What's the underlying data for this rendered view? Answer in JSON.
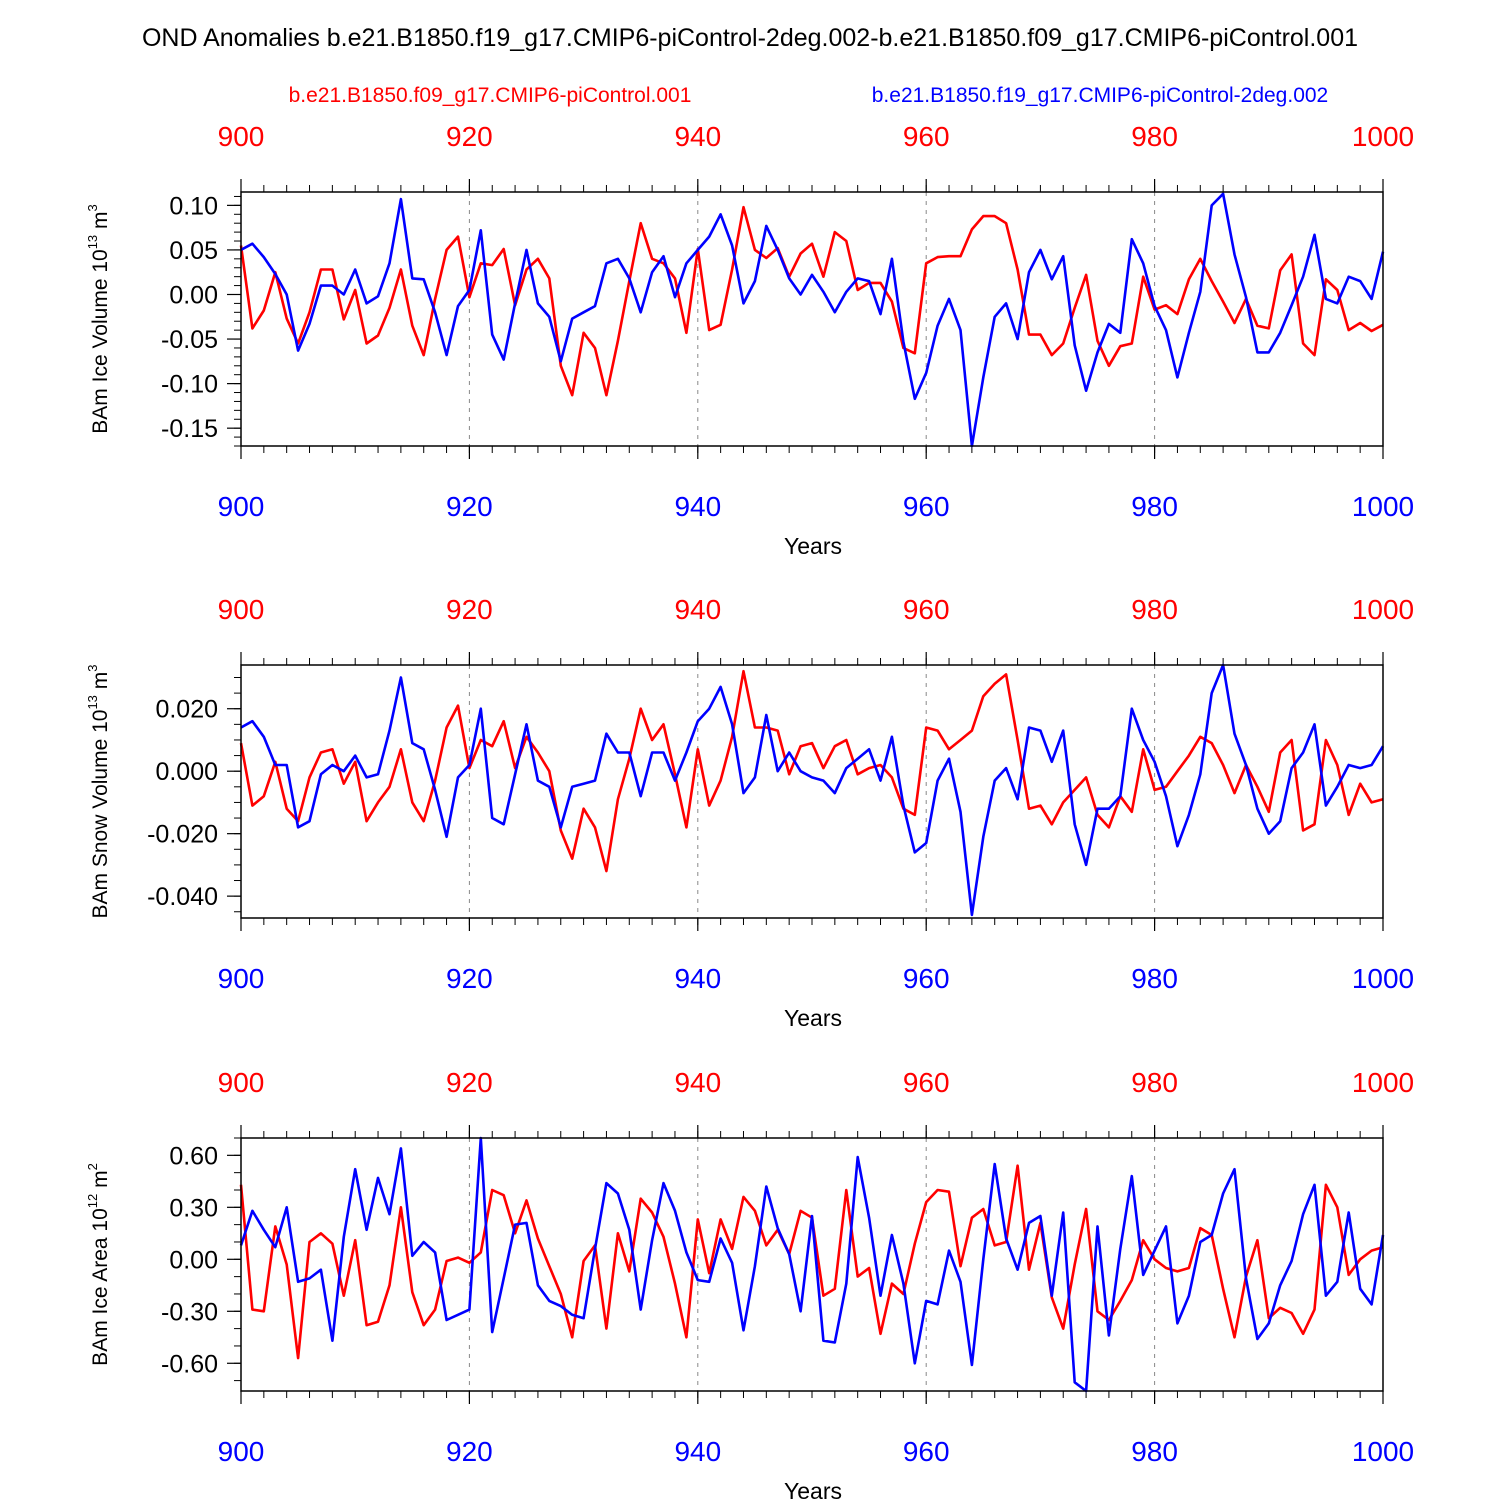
{
  "title": "OND Anomalies b.e21.B1850.f19_g17.CMIP6-piControl-2deg.002-b.e21.B1850.f09_g17.CMIP6-piControl.001",
  "legend": {
    "red": "b.e21.B1850.f09_g17.CMIP6-piControl.001",
    "blue": "b.e21.B1850.f19_g17.CMIP6-piControl-2deg.002"
  },
  "colors": {
    "red": "#ff0000",
    "blue": "#0000ff",
    "axis": "#000000",
    "grid": "#888888"
  },
  "chart_data": [
    {
      "type": "line",
      "ylabel": {
        "main": "BAm Ice Volume 10",
        "sup1": "13",
        "mid": " m",
        "sup2": "3"
      },
      "xlabel": "Years",
      "xlim": [
        900,
        1000
      ],
      "ylim": [
        -0.17,
        0.115
      ],
      "yticks": [
        0.1,
        0.05,
        0.0,
        -0.05,
        -0.1,
        -0.15
      ],
      "ytick_labels": [
        "0.10",
        "0.05",
        "0.00",
        "-0.05",
        "-0.10",
        "-0.15"
      ],
      "ytick_minor": 0.01,
      "xticks": [
        900,
        920,
        940,
        960,
        980,
        1000
      ],
      "xtick_labels": [
        "900",
        "920",
        "940",
        "960",
        "980",
        "1000"
      ],
      "series": [
        {
          "name": "b.e21.B1850.f09_g17.CMIP6-piControl.001",
          "color": "#ff0000",
          "x_start": 900,
          "values": [
            0.055,
            -0.038,
            -0.018,
            0.025,
            -0.027,
            -0.055,
            -0.02,
            0.028,
            0.028,
            -0.028,
            0.005,
            -0.055,
            -0.046,
            -0.015,
            0.028,
            -0.035,
            -0.068,
            -0.005,
            0.05,
            0.065,
            -0.003,
            0.035,
            0.033,
            0.051,
            -0.012,
            0.028,
            0.04,
            0.018,
            -0.08,
            -0.113,
            -0.043,
            -0.06,
            -0.113,
            -0.052,
            0.015,
            0.08,
            0.04,
            0.035,
            0.018,
            -0.043,
            0.051,
            -0.04,
            -0.034,
            0.028,
            0.098,
            0.05,
            0.041,
            0.052,
            0.02,
            0.046,
            0.057,
            0.02,
            0.07,
            0.06,
            0.005,
            0.013,
            0.013,
            -0.008,
            -0.06,
            -0.066,
            0.035,
            0.042,
            0.043,
            0.043,
            0.073,
            0.088,
            0.088,
            0.08,
            0.028,
            -0.045,
            -0.045,
            -0.068,
            -0.055,
            -0.015,
            0.022,
            -0.052,
            -0.08,
            -0.058,
            -0.055,
            0.02,
            -0.017,
            -0.012,
            -0.022,
            0.017,
            0.04,
            0.015,
            -0.008,
            -0.032,
            -0.005,
            -0.035,
            -0.038,
            0.027,
            0.045,
            -0.055,
            -0.068,
            0.017,
            0.005,
            -0.04,
            -0.032,
            -0.041,
            -0.034
          ]
        },
        {
          "name": "b.e21.B1850.f19_g17.CMIP6-piControl-2deg.002",
          "color": "#0000ff",
          "x_start": 900,
          "values": [
            0.05,
            0.057,
            0.042,
            0.023,
            0.0,
            -0.063,
            -0.033,
            0.01,
            0.01,
            0.0,
            0.028,
            -0.01,
            -0.002,
            0.035,
            0.107,
            0.018,
            0.017,
            -0.02,
            -0.068,
            -0.013,
            0.005,
            0.072,
            -0.045,
            -0.073,
            -0.01,
            0.05,
            -0.01,
            -0.025,
            -0.075,
            -0.027,
            -0.02,
            -0.013,
            0.035,
            0.04,
            0.018,
            -0.02,
            0.025,
            0.043,
            -0.003,
            0.035,
            0.05,
            0.065,
            0.09,
            0.055,
            -0.01,
            0.015,
            0.077,
            0.05,
            0.018,
            0.0,
            0.022,
            0.003,
            -0.02,
            0.003,
            0.018,
            0.015,
            -0.022,
            0.04,
            -0.053,
            -0.117,
            -0.088,
            -0.035,
            -0.005,
            -0.04,
            -0.17,
            -0.093,
            -0.025,
            -0.01,
            -0.05,
            0.025,
            0.05,
            0.017,
            0.043,
            -0.057,
            -0.108,
            -0.065,
            -0.033,
            -0.043,
            0.062,
            0.035,
            -0.013,
            -0.04,
            -0.093,
            -0.043,
            0.003,
            0.1,
            0.113,
            0.045,
            -0.003,
            -0.065,
            -0.065,
            -0.043,
            -0.012,
            0.02,
            0.067,
            -0.005,
            -0.01,
            0.02,
            0.015,
            -0.005,
            0.048
          ]
        }
      ]
    },
    {
      "type": "line",
      "ylabel": {
        "main": "BAm Snow Volume 10",
        "sup1": "13",
        "mid": " m",
        "sup2": "3"
      },
      "xlabel": "Years",
      "xlim": [
        900,
        1000
      ],
      "ylim": [
        -0.047,
        0.034
      ],
      "yticks": [
        0.02,
        0.0,
        -0.02,
        -0.04
      ],
      "ytick_labels": [
        "0.020",
        "0.000",
        "-0.020",
        "-0.040"
      ],
      "ytick_minor": 0.005,
      "xticks": [
        900,
        920,
        940,
        960,
        980,
        1000
      ],
      "xtick_labels": [
        "900",
        "920",
        "940",
        "960",
        "980",
        "1000"
      ],
      "series": [
        {
          "name": "b.e21.B1850.f09_g17.CMIP6-piControl.001",
          "color": "#ff0000",
          "x_start": 900,
          "values": [
            0.009,
            -0.011,
            -0.008,
            0.003,
            -0.012,
            -0.016,
            -0.002,
            0.006,
            0.007,
            -0.004,
            0.003,
            -0.016,
            -0.01,
            -0.005,
            0.007,
            -0.01,
            -0.016,
            -0.003,
            0.014,
            0.021,
            0.001,
            0.01,
            0.008,
            0.016,
            0.001,
            0.011,
            0.006,
            0.0,
            -0.019,
            -0.028,
            -0.012,
            -0.018,
            -0.032,
            -0.009,
            0.004,
            0.02,
            0.01,
            0.015,
            -0.001,
            -0.018,
            0.007,
            -0.011,
            -0.003,
            0.011,
            0.032,
            0.014,
            0.014,
            0.013,
            -0.001,
            0.008,
            0.009,
            0.001,
            0.008,
            0.01,
            -0.001,
            0.001,
            0.002,
            -0.002,
            -0.012,
            -0.014,
            0.014,
            0.013,
            0.007,
            0.01,
            0.013,
            0.024,
            0.028,
            0.031,
            0.01,
            -0.012,
            -0.011,
            -0.017,
            -0.01,
            -0.006,
            -0.002,
            -0.014,
            -0.018,
            -0.008,
            -0.013,
            0.007,
            -0.006,
            -0.005,
            0.0,
            0.005,
            0.011,
            0.009,
            0.002,
            -0.007,
            0.002,
            -0.005,
            -0.013,
            0.006,
            0.01,
            -0.019,
            -0.017,
            0.01,
            0.002,
            -0.014,
            -0.004,
            -0.01,
            -0.009
          ]
        },
        {
          "name": "b.e21.B1850.f19_g17.CMIP6-piControl-2deg.002",
          "color": "#0000ff",
          "x_start": 900,
          "values": [
            0.014,
            0.016,
            0.011,
            0.002,
            0.002,
            -0.018,
            -0.016,
            -0.001,
            0.002,
            0.0,
            0.005,
            -0.002,
            -0.001,
            0.013,
            0.03,
            0.009,
            0.007,
            -0.006,
            -0.021,
            -0.002,
            0.002,
            0.02,
            -0.015,
            -0.017,
            -0.001,
            0.015,
            -0.003,
            -0.005,
            -0.018,
            -0.005,
            -0.004,
            -0.003,
            0.012,
            0.006,
            0.006,
            -0.008,
            0.006,
            0.006,
            -0.003,
            0.006,
            0.016,
            0.02,
            0.027,
            0.015,
            -0.007,
            -0.002,
            0.018,
            0.0,
            0.006,
            0.0,
            -0.002,
            -0.003,
            -0.007,
            0.001,
            0.004,
            0.007,
            -0.003,
            0.011,
            -0.011,
            -0.026,
            -0.023,
            -0.003,
            0.004,
            -0.013,
            -0.046,
            -0.021,
            -0.003,
            0.001,
            -0.009,
            0.014,
            0.013,
            0.003,
            0.013,
            -0.017,
            -0.03,
            -0.012,
            -0.012,
            -0.008,
            0.02,
            0.01,
            0.003,
            -0.008,
            -0.024,
            -0.014,
            -0.001,
            0.025,
            0.034,
            0.012,
            0.002,
            -0.012,
            -0.02,
            -0.016,
            0.001,
            0.006,
            0.015,
            -0.011,
            -0.005,
            0.002,
            0.001,
            0.002,
            0.008
          ]
        }
      ]
    },
    {
      "type": "line",
      "ylabel": {
        "main": "BAm Ice Area 10",
        "sup1": "12",
        "mid": " m",
        "sup2": "2"
      },
      "xlabel": "Years",
      "xlim": [
        900,
        1000
      ],
      "ylim": [
        -0.76,
        0.7
      ],
      "yticks": [
        0.6,
        0.3,
        0.0,
        -0.3,
        -0.6
      ],
      "ytick_labels": [
        "0.60",
        "0.30",
        "0.00",
        "-0.30",
        "-0.60"
      ],
      "ytick_minor": 0.1,
      "xticks": [
        900,
        920,
        940,
        960,
        980,
        1000
      ],
      "xtick_labels": [
        "900",
        "920",
        "940",
        "960",
        "980",
        "1000"
      ],
      "series": [
        {
          "name": "b.e21.B1850.f09_g17.CMIP6-piControl.001",
          "color": "#ff0000",
          "x_start": 900,
          "values": [
            0.43,
            -0.29,
            -0.3,
            0.19,
            -0.03,
            -0.57,
            0.1,
            0.15,
            0.09,
            -0.21,
            0.11,
            -0.38,
            -0.36,
            -0.15,
            0.3,
            -0.19,
            -0.38,
            -0.29,
            -0.01,
            0.01,
            -0.02,
            0.04,
            0.4,
            0.37,
            0.15,
            0.34,
            0.12,
            -0.04,
            -0.2,
            -0.45,
            -0.01,
            0.08,
            -0.4,
            0.15,
            -0.07,
            0.35,
            0.27,
            0.13,
            -0.14,
            -0.45,
            0.23,
            -0.08,
            0.23,
            0.06,
            0.36,
            0.28,
            0.08,
            0.17,
            0.03,
            0.28,
            0.24,
            -0.21,
            -0.17,
            0.4,
            -0.1,
            -0.05,
            -0.43,
            -0.14,
            -0.2,
            0.09,
            0.33,
            0.4,
            0.39,
            -0.04,
            0.24,
            0.29,
            0.08,
            0.1,
            0.54,
            -0.06,
            0.21,
            -0.22,
            -0.4,
            -0.03,
            0.29,
            -0.3,
            -0.35,
            -0.24,
            -0.12,
            0.11,
            0.0,
            -0.05,
            -0.07,
            -0.05,
            0.18,
            0.14,
            -0.17,
            -0.45,
            -0.1,
            0.11,
            -0.34,
            -0.28,
            -0.31,
            -0.43,
            -0.29,
            0.43,
            0.3,
            -0.09,
            0.0,
            0.05,
            0.07
          ]
        },
        {
          "name": "b.e21.B1850.f19_g17.CMIP6-piControl-2deg.002",
          "color": "#0000ff",
          "x_start": 900,
          "values": [
            0.08,
            0.28,
            0.17,
            0.07,
            0.3,
            -0.13,
            -0.11,
            -0.06,
            -0.47,
            0.13,
            0.52,
            0.17,
            0.47,
            0.26,
            0.64,
            0.02,
            0.1,
            0.04,
            -0.35,
            -0.32,
            -0.29,
            0.7,
            -0.42,
            -0.11,
            0.2,
            0.21,
            -0.15,
            -0.24,
            -0.27,
            -0.32,
            -0.34,
            0.06,
            0.44,
            0.38,
            0.17,
            -0.29,
            0.11,
            0.44,
            0.28,
            0.04,
            -0.12,
            -0.13,
            0.12,
            -0.02,
            -0.41,
            -0.04,
            0.42,
            0.18,
            0.03,
            -0.3,
            0.25,
            -0.47,
            -0.48,
            -0.14,
            0.59,
            0.24,
            -0.21,
            0.14,
            -0.14,
            -0.6,
            -0.24,
            -0.26,
            0.05,
            -0.13,
            -0.61,
            0.0,
            0.55,
            0.12,
            -0.06,
            0.21,
            0.25,
            -0.21,
            0.27,
            -0.71,
            -0.76,
            0.19,
            -0.44,
            0.06,
            0.48,
            -0.09,
            0.05,
            0.19,
            -0.37,
            -0.21,
            0.1,
            0.14,
            0.38,
            0.52,
            -0.11,
            -0.46,
            -0.37,
            -0.15,
            -0.01,
            0.26,
            0.43,
            -0.21,
            -0.13,
            0.27,
            -0.17,
            -0.26,
            0.14
          ]
        }
      ]
    }
  ]
}
